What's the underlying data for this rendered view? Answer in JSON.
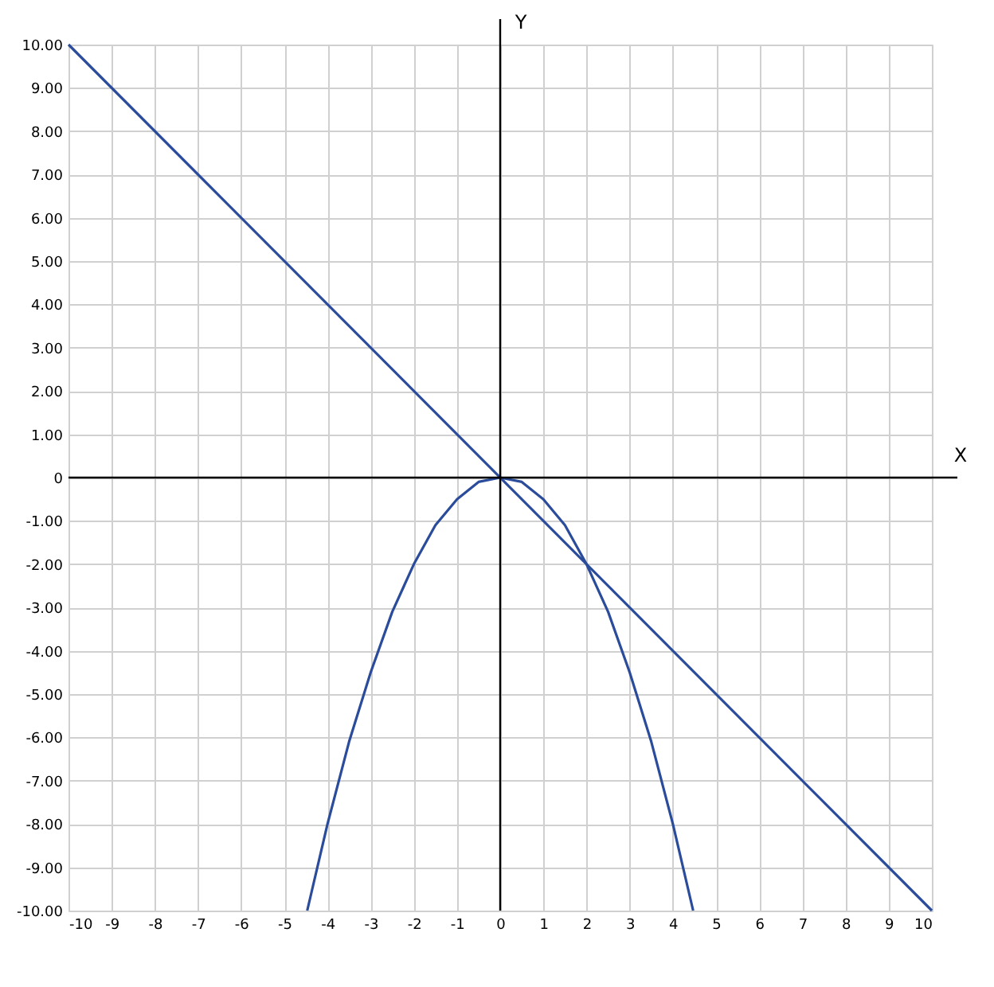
{
  "chart_data": {
    "type": "line",
    "xlabel": "X",
    "ylabel": "Y",
    "xlim": [
      -10,
      10
    ],
    "ylim": [
      -10,
      10
    ],
    "xticks": [
      -10,
      -9,
      -8,
      -7,
      -6,
      -5,
      -4,
      -3,
      -2,
      -1,
      0,
      1,
      2,
      3,
      4,
      5,
      6,
      7,
      8,
      9,
      10
    ],
    "yticks": [
      {
        "value": 10,
        "label": "10.00"
      },
      {
        "value": 9,
        "label": "9.00"
      },
      {
        "value": 8,
        "label": "8.00"
      },
      {
        "value": 7,
        "label": "7.00"
      },
      {
        "value": 6,
        "label": "6.00"
      },
      {
        "value": 5,
        "label": "5.00"
      },
      {
        "value": 4,
        "label": "4.00"
      },
      {
        "value": 3,
        "label": "3.00"
      },
      {
        "value": 2,
        "label": "2.00"
      },
      {
        "value": 1,
        "label": "1.00"
      },
      0,
      {
        "value": -1,
        "label": "-1.00"
      },
      {
        "value": -2,
        "label": "-2.00"
      },
      {
        "value": -3,
        "label": "-3.00"
      },
      {
        "value": -4,
        "label": "-4.00"
      },
      {
        "value": -5,
        "label": "-5.00"
      },
      {
        "value": -6,
        "label": "-6.00"
      },
      {
        "value": -7,
        "label": "-7.00"
      },
      {
        "value": -8,
        "label": "-8.00"
      },
      {
        "value": -9,
        "label": "-9.00"
      },
      {
        "value": -10,
        "label": "-10.00"
      }
    ],
    "series": [
      {
        "color": "#2b4c9b",
        "x": [
          -10,
          10
        ],
        "values": [
          10,
          -10
        ]
      },
      {
        "color": "#2b4c9b",
        "x": [
          -4.47,
          -4,
          -3.5,
          -3,
          -2.5,
          -2,
          -1.5,
          -1,
          -0.5,
          0,
          0.5,
          1,
          1.5,
          2,
          2.5,
          3,
          3.5,
          4,
          4.47
        ],
        "values": [
          -10,
          -8,
          -6.1,
          -4.5,
          -3.1,
          -2,
          -1.1,
          -0.5,
          -0.1,
          0,
          -0.1,
          -0.5,
          -1.1,
          -2,
          -3.1,
          -4.5,
          -6.1,
          -8,
          -10
        ]
      }
    ],
    "grid": true,
    "marker": "none",
    "line_style": "solid"
  }
}
